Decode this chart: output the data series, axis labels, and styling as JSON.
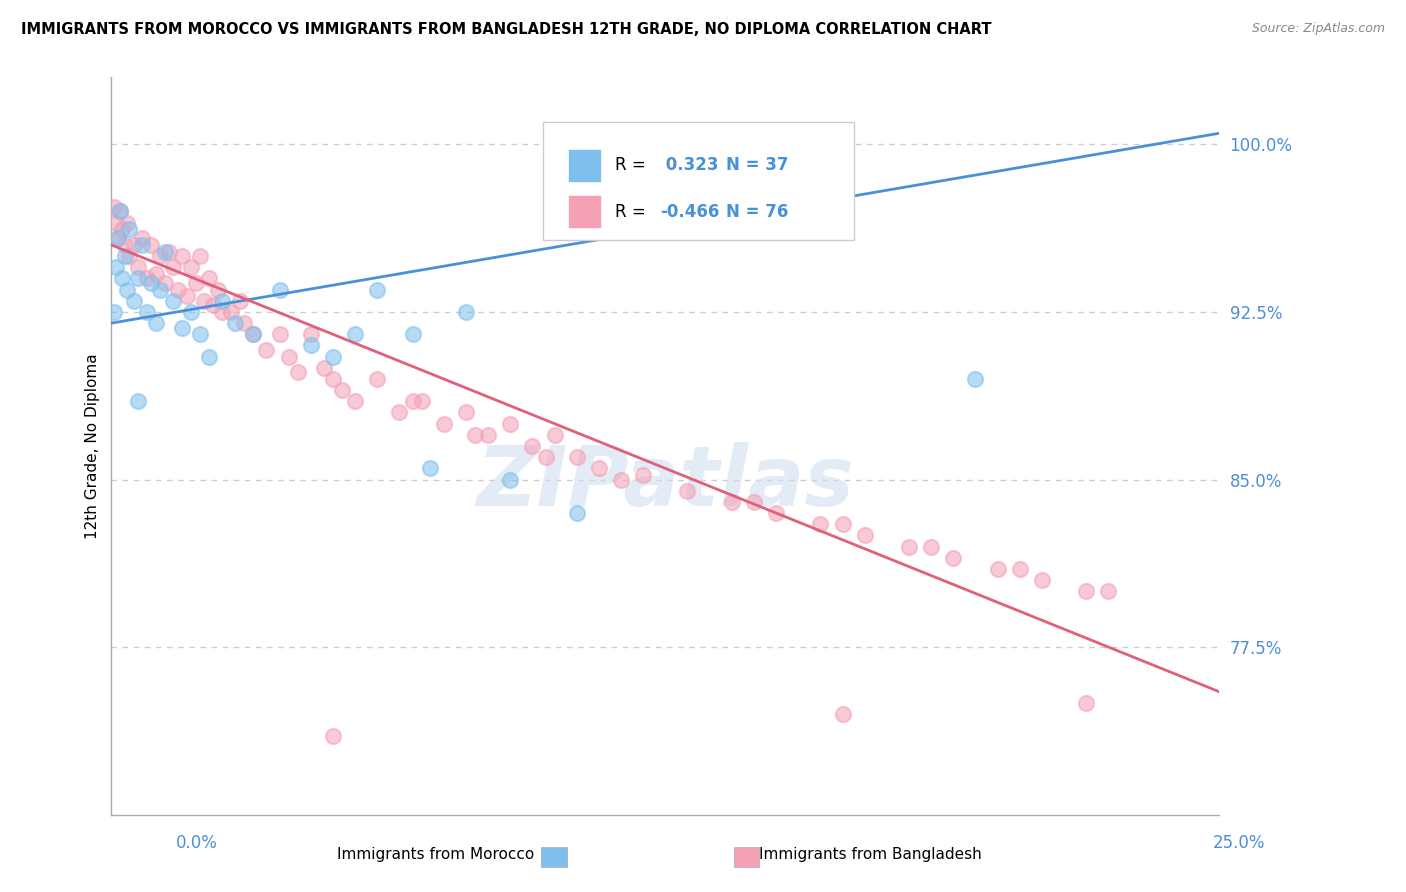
{
  "title": "IMMIGRANTS FROM MOROCCO VS IMMIGRANTS FROM BANGLADESH 12TH GRADE, NO DIPLOMA CORRELATION CHART",
  "source": "Source: ZipAtlas.com",
  "ylabel": "12th Grade, No Diploma",
  "y_ticks": [
    77.5,
    85.0,
    92.5,
    100.0
  ],
  "y_tick_labels": [
    "77.5%",
    "85.0%",
    "92.5%",
    "100.0%"
  ],
  "xlim": [
    0.0,
    25.0
  ],
  "ylim": [
    70.0,
    103.0
  ],
  "morocco_color": "#7fbfed",
  "bangladesh_color": "#f4a0b5",
  "morocco_R": 0.323,
  "morocco_N": 37,
  "bangladesh_R": -0.466,
  "bangladesh_N": 76,
  "morocco_line_color": "#4a90d9",
  "bangladesh_line_color": "#e0607a",
  "watermark": "ZIPatlas",
  "morocco_line_x0": 0.0,
  "morocco_line_y0": 92.0,
  "morocco_line_x1": 25.0,
  "morocco_line_y1": 100.5,
  "bangladesh_line_x0": 0.0,
  "bangladesh_line_y0": 95.5,
  "bangladesh_line_x1": 25.0,
  "bangladesh_line_y1": 75.5,
  "morocco_scatter_x": [
    0.05,
    0.1,
    0.15,
    0.2,
    0.25,
    0.3,
    0.35,
    0.4,
    0.5,
    0.6,
    0.7,
    0.8,
    0.9,
    1.0,
    1.1,
    1.2,
    1.4,
    1.6,
    1.8,
    2.0,
    2.2,
    2.5,
    2.8,
    3.2,
    3.8,
    4.5,
    5.0,
    5.5,
    6.0,
    6.8,
    7.2,
    8.0,
    9.0,
    10.5,
    15.0,
    19.5,
    0.6
  ],
  "morocco_scatter_y": [
    92.5,
    94.5,
    95.8,
    97.0,
    94.0,
    95.0,
    93.5,
    96.2,
    93.0,
    94.0,
    95.5,
    92.5,
    93.8,
    92.0,
    93.5,
    95.2,
    93.0,
    91.8,
    92.5,
    91.5,
    90.5,
    93.0,
    92.0,
    91.5,
    93.5,
    91.0,
    90.5,
    91.5,
    93.5,
    91.5,
    85.5,
    92.5,
    85.0,
    83.5,
    97.0,
    89.5,
    88.5
  ],
  "bangladesh_scatter_x": [
    0.05,
    0.1,
    0.15,
    0.2,
    0.25,
    0.3,
    0.35,
    0.4,
    0.5,
    0.6,
    0.7,
    0.8,
    0.9,
    1.0,
    1.1,
    1.2,
    1.3,
    1.4,
    1.5,
    1.6,
    1.7,
    1.8,
    1.9,
    2.0,
    2.1,
    2.2,
    2.3,
    2.4,
    2.5,
    2.7,
    2.9,
    3.0,
    3.2,
    3.5,
    3.8,
    4.0,
    4.2,
    4.5,
    4.8,
    5.0,
    5.5,
    6.0,
    6.5,
    7.0,
    7.5,
    8.0,
    8.5,
    9.0,
    9.5,
    10.0,
    10.5,
    11.0,
    12.0,
    13.0,
    14.0,
    15.0,
    16.0,
    17.0,
    18.0,
    19.0,
    20.0,
    21.0,
    22.0,
    5.2,
    6.8,
    8.2,
    9.8,
    11.5,
    14.5,
    16.5,
    18.5,
    20.5,
    22.5,
    5.0,
    16.5,
    22.0
  ],
  "bangladesh_scatter_y": [
    97.2,
    96.5,
    95.8,
    97.0,
    96.2,
    95.5,
    96.5,
    95.0,
    95.5,
    94.5,
    95.8,
    94.0,
    95.5,
    94.2,
    95.0,
    93.8,
    95.2,
    94.5,
    93.5,
    95.0,
    93.2,
    94.5,
    93.8,
    95.0,
    93.0,
    94.0,
    92.8,
    93.5,
    92.5,
    92.5,
    93.0,
    92.0,
    91.5,
    90.8,
    91.5,
    90.5,
    89.8,
    91.5,
    90.0,
    89.5,
    88.5,
    89.5,
    88.0,
    88.5,
    87.5,
    88.0,
    87.0,
    87.5,
    86.5,
    87.0,
    86.0,
    85.5,
    85.2,
    84.5,
    84.0,
    83.5,
    83.0,
    82.5,
    82.0,
    81.5,
    81.0,
    80.5,
    80.0,
    89.0,
    88.5,
    87.0,
    86.0,
    85.0,
    84.0,
    83.0,
    82.0,
    81.0,
    80.0,
    73.5,
    74.5,
    75.0
  ]
}
